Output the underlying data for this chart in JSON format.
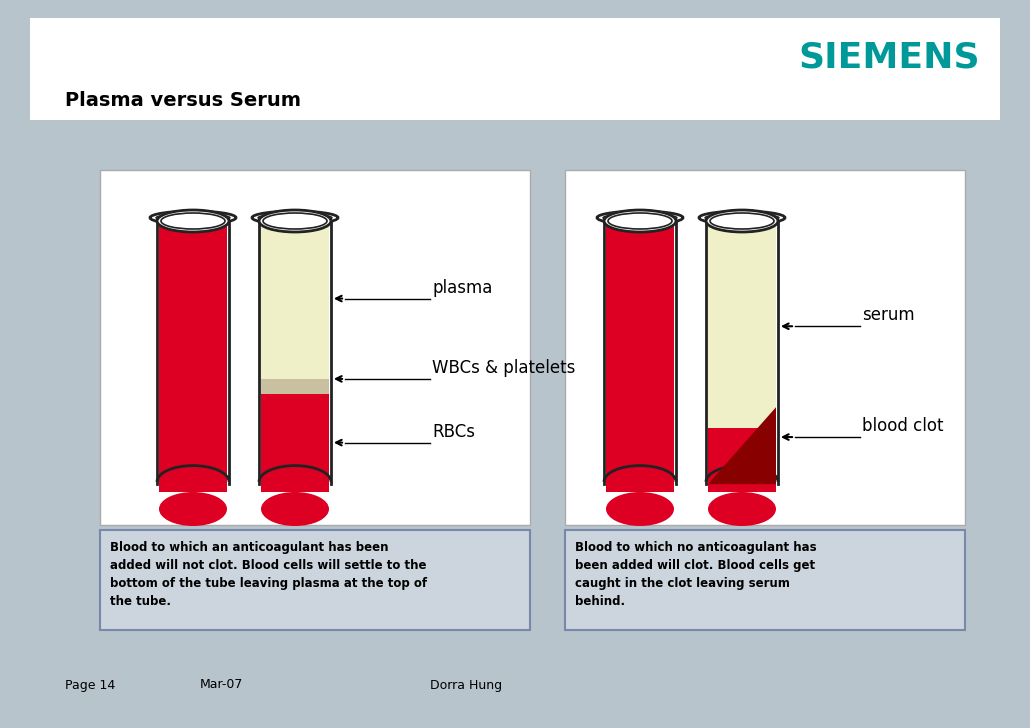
{
  "bg_color": "#b8c4cc",
  "white_bg": "#ffffff",
  "header_bg": "#ffffff",
  "content_bg": "#b8c4cc",
  "panel_bg": "#f0f0ec",
  "panel_border": "#aaaaaa",
  "title": "Plasma versus Serum",
  "title_fontsize": 14,
  "siemens_color": "#009999",
  "siemens_text": "SIEMENS",
  "siemens_fontsize": 26,
  "red_color": "#dd0022",
  "plasma_color": "#f0f0c8",
  "wbc_color": "#c8c0a0",
  "serum_color": "#f0f0c8",
  "clot_color": "#880000",
  "tube_outline": "#222222",
  "tube_fill": "#ffffff",
  "left_caption": "Blood to which an anticoagulant has been\nadded will not clot. Blood cells will settle to the\nbottom of the tube leaving plasma at the top of\nthe tube.",
  "right_caption": "Blood to which no anticoagulant has\nbeen added will clot. Blood cells get\ncaught in the clot leaving serum\nbehind.",
  "footer_page": "Page 14",
  "footer_date": "Mar-07",
  "footer_author": "Dorra Hung",
  "caption_bg": "#ccd5dd",
  "caption_border": "#7788aa",
  "arrow_label_plasma": "plasma",
  "arrow_label_wbc": "WBCs & platelets",
  "arrow_label_rbc": "RBCs",
  "arrow_label_serum": "serum",
  "arrow_label_clot": "blood clot"
}
